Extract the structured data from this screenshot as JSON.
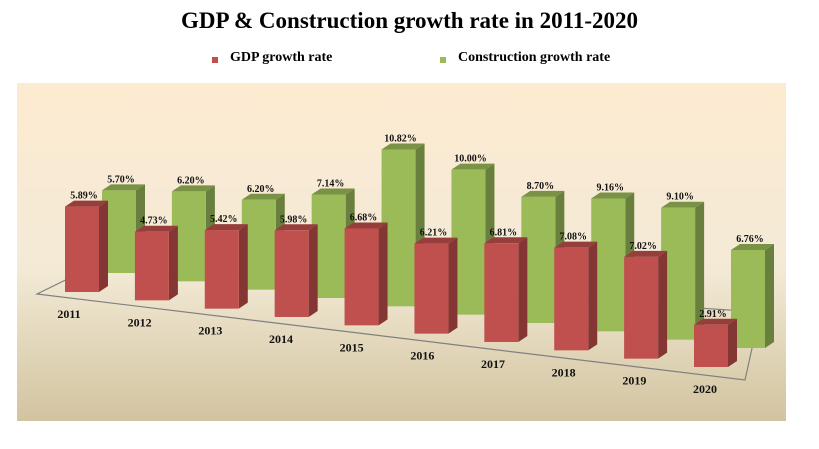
{
  "chart_data": {
    "type": "bar",
    "style": "3d-clustered-column",
    "title": "GDP & Construction growth rate in 2011-2020",
    "xlabel": "",
    "ylabel": "",
    "legend_position": "top",
    "grid": false,
    "categories": [
      "2011",
      "2012",
      "2013",
      "2014",
      "2015",
      "2016",
      "2017",
      "2018",
      "2019",
      "2020"
    ],
    "series": [
      {
        "name": "GDP growth rate",
        "color": "#c0504d",
        "values": [
          5.89,
          4.73,
          5.42,
          5.98,
          6.68,
          6.21,
          6.81,
          7.08,
          7.02,
          2.91
        ],
        "labels": [
          "5.89%",
          "4.73%",
          "5.42%",
          "5.98%",
          "6.68%",
          "6.21%",
          "6.81%",
          "7.08%",
          "7.02%",
          "2.91%"
        ]
      },
      {
        "name": "Construction growth rate",
        "color": "#9bbb59",
        "values": [
          5.7,
          6.2,
          6.2,
          7.14,
          10.82,
          10.0,
          8.7,
          9.16,
          9.1,
          6.76
        ],
        "labels": [
          "5.70%",
          "6.20%",
          "6.20%",
          "7.14%",
          "10.82%",
          "10.00%",
          "8.70%",
          "9.16%",
          "9.10%",
          "6.76%"
        ]
      }
    ],
    "ylim": [
      0,
      12
    ]
  }
}
